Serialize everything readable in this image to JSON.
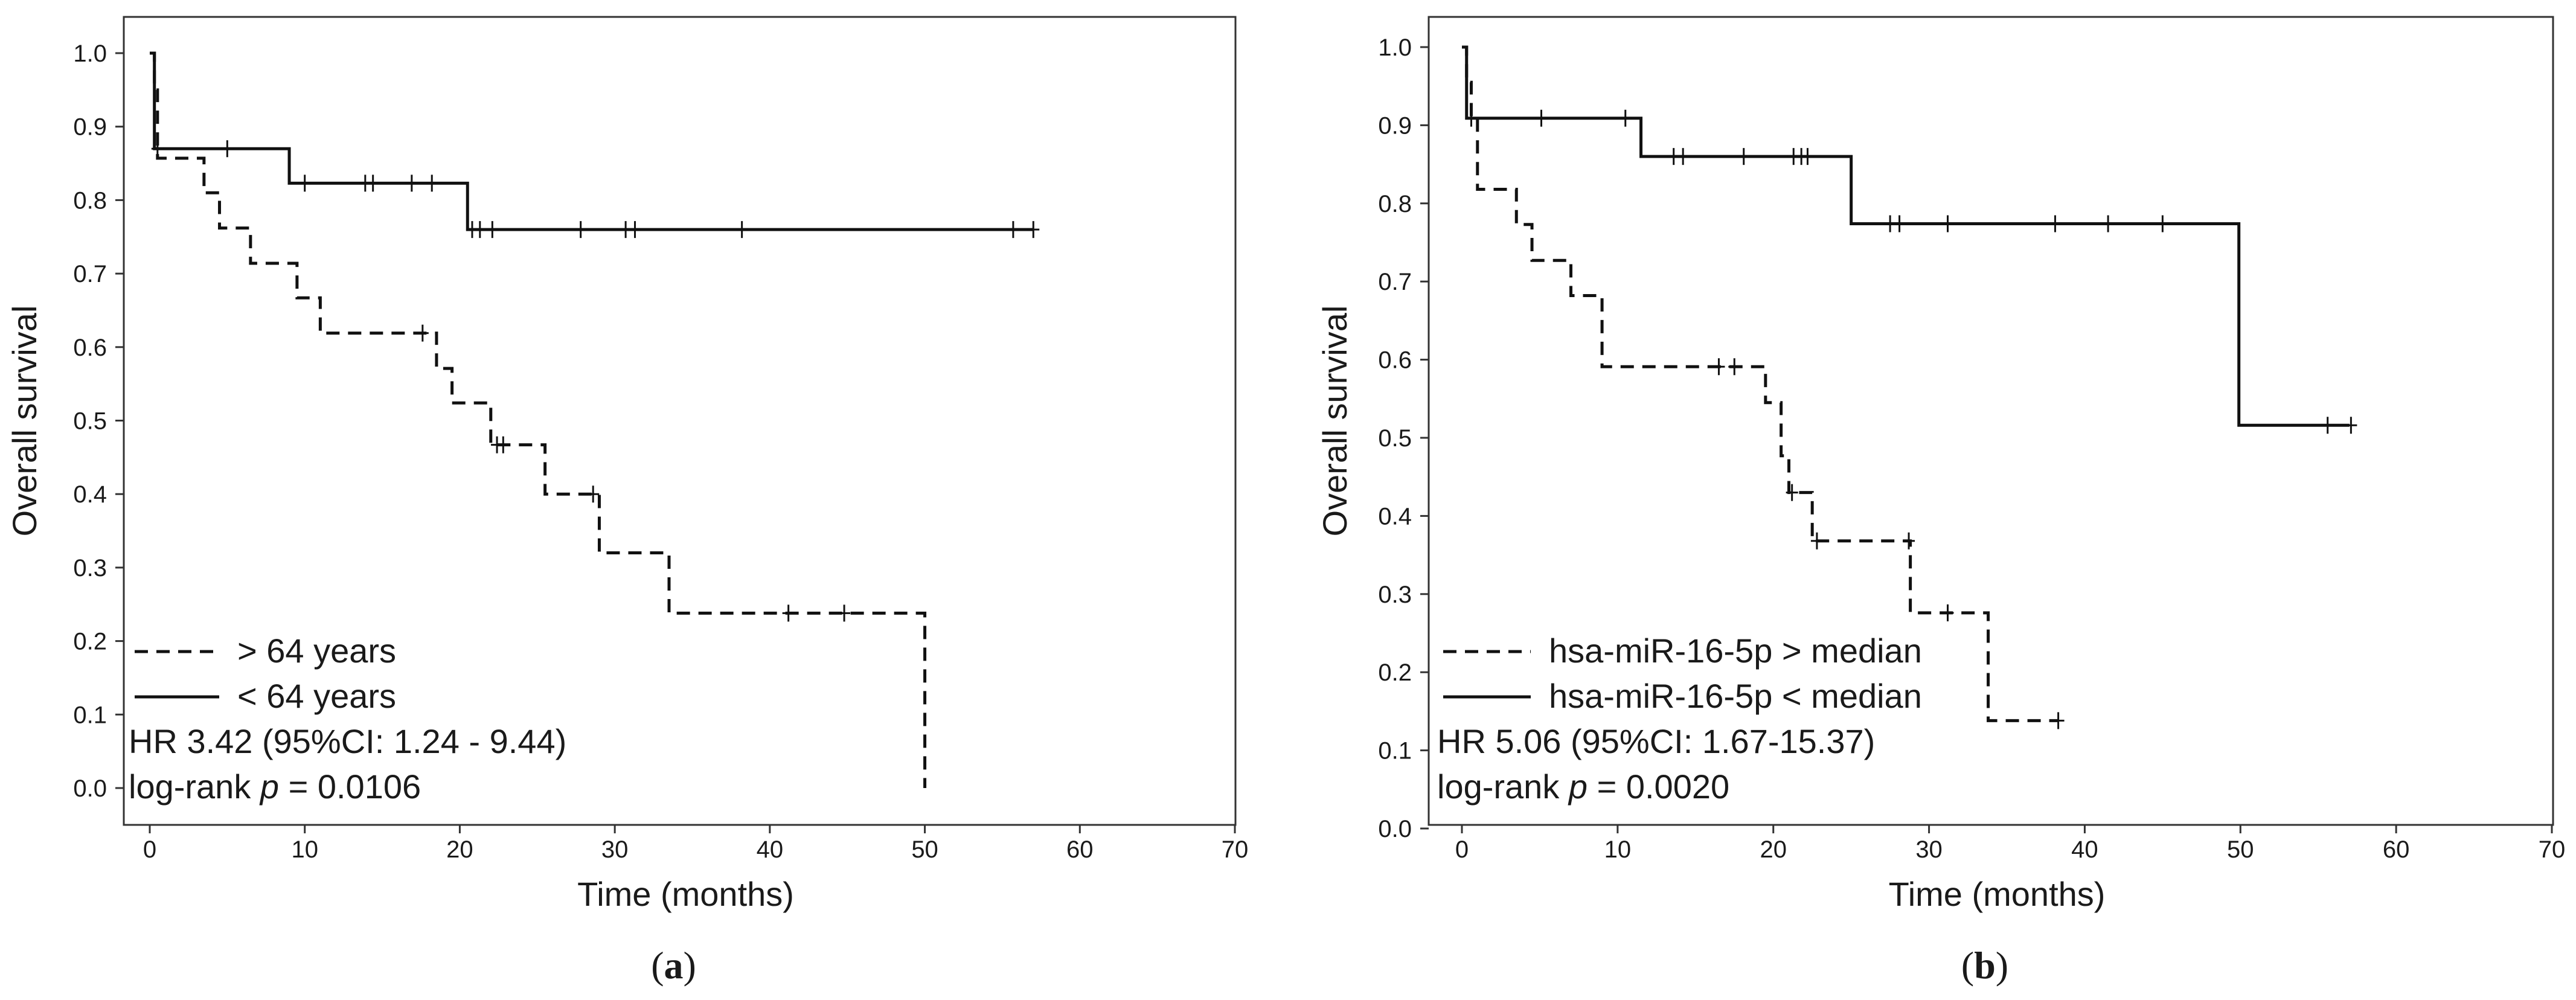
{
  "chart_data": [
    {
      "type": "line",
      "panel_label": "a",
      "xlabel": "Time (months)",
      "ylabel": "Overall survival",
      "xlim": [
        0,
        70
      ],
      "ylim": [
        0,
        1.0
      ],
      "xticks": [
        "0",
        "10",
        "20",
        "30",
        "40",
        "50",
        "60",
        "70"
      ],
      "yticks": [
        "0.0",
        "0.1",
        "0.2",
        "0.3",
        "0.4",
        "0.5",
        "0.6",
        "0.7",
        "0.8",
        "0.9",
        "1.0"
      ],
      "series": [
        {
          "name": "> 64 years",
          "style": "dashed",
          "steps": [
            [
              0,
              1.0
            ],
            [
              0.3,
              0.95
            ],
            [
              0.5,
              0.857
            ],
            [
              3.5,
              0.81
            ],
            [
              4.5,
              0.762
            ],
            [
              6.5,
              0.714
            ],
            [
              9.5,
              0.667
            ],
            [
              11,
              0.619
            ],
            [
              18.5,
              0.571
            ],
            [
              19.5,
              0.524
            ],
            [
              22,
              0.467
            ],
            [
              25.5,
              0.4
            ],
            [
              29,
              0.32
            ],
            [
              33.5,
              0.238
            ],
            [
              50,
              0.0
            ]
          ],
          "censored": [
            [
              17.6,
              0.619
            ],
            [
              22.4,
              0.467
            ],
            [
              22.8,
              0.467
            ],
            [
              28.6,
              0.4
            ],
            [
              41.2,
              0.238
            ],
            [
              44.8,
              0.238
            ]
          ]
        },
        {
          "name": "< 64 years",
          "style": "solid",
          "steps": [
            [
              0,
              1.0
            ],
            [
              0.3,
              0.87
            ],
            [
              9,
              0.823
            ],
            [
              20.5,
              0.76
            ],
            [
              57,
              0.76
            ]
          ],
          "censored": [
            [
              0.5,
              0.87
            ],
            [
              5,
              0.87
            ],
            [
              10,
              0.823
            ],
            [
              13.9,
              0.823
            ],
            [
              14.4,
              0.823
            ],
            [
              16.9,
              0.823
            ],
            [
              18.2,
              0.823
            ],
            [
              20.8,
              0.76
            ],
            [
              21.3,
              0.76
            ],
            [
              22.1,
              0.76
            ],
            [
              27.8,
              0.76
            ],
            [
              30.7,
              0.76
            ],
            [
              31.3,
              0.76
            ],
            [
              38.2,
              0.76
            ],
            [
              55.7,
              0.76
            ],
            [
              57,
              0.76
            ]
          ]
        }
      ],
      "annotations": [
        {
          "text_prefix": "HR 3.42 (95%CI: 1.24 - 9.44)"
        },
        {
          "text_prefix": "log-rank ",
          "italic": "p",
          "text_suffix": " = 0.0106"
        }
      ]
    },
    {
      "type": "line",
      "panel_label": "b",
      "xlabel": "Time (months)",
      "ylabel": "Overall survival",
      "xlim": [
        0,
        70
      ],
      "ylim": [
        0,
        1.0
      ],
      "xticks": [
        "0",
        "10",
        "20",
        "30",
        "40",
        "50",
        "60",
        "70"
      ],
      "yticks": [
        "0.0",
        "0.1",
        "0.2",
        "0.3",
        "0.4",
        "0.5",
        "0.6",
        "0.7",
        "0.8",
        "0.9",
        "1.0"
      ],
      "series": [
        {
          "name": "hsa-miR-16-5p > median",
          "style": "dashed",
          "steps": [
            [
              0,
              1.0
            ],
            [
              0.3,
              0.955
            ],
            [
              0.6,
              0.909
            ],
            [
              1,
              0.818
            ],
            [
              3.5,
              0.773
            ],
            [
              4.5,
              0.727
            ],
            [
              7,
              0.682
            ],
            [
              9,
              0.591
            ],
            [
              19.5,
              0.545
            ],
            [
              20.5,
              0.477
            ],
            [
              21,
              0.43
            ],
            [
              22.5,
              0.368
            ],
            [
              28.8,
              0.276
            ],
            [
              33.8,
              0.138
            ],
            [
              38.3,
              0.138
            ]
          ],
          "censored": [
            [
              16.5,
              0.591
            ],
            [
              17.5,
              0.591
            ],
            [
              21.2,
              0.43
            ],
            [
              22.8,
              0.368
            ],
            [
              28.7,
              0.368
            ],
            [
              31.2,
              0.276
            ],
            [
              38.3,
              0.138
            ]
          ]
        },
        {
          "name": "hsa-miR-16-5p < median",
          "style": "solid",
          "steps": [
            [
              0,
              1.0
            ],
            [
              0.3,
              0.909
            ],
            [
              11.5,
              0.86
            ],
            [
              25,
              0.774
            ],
            [
              49.9,
              0.516
            ],
            [
              57,
              0.516
            ]
          ],
          "censored": [
            [
              0.6,
              0.909
            ],
            [
              5.1,
              0.909
            ],
            [
              10.5,
              0.909
            ],
            [
              13.6,
              0.86
            ],
            [
              14.2,
              0.86
            ],
            [
              18.1,
              0.86
            ],
            [
              21.3,
              0.86
            ],
            [
              21.8,
              0.86
            ],
            [
              22.2,
              0.86
            ],
            [
              27.5,
              0.774
            ],
            [
              28.1,
              0.774
            ],
            [
              31.2,
              0.774
            ],
            [
              38.1,
              0.774
            ],
            [
              41.5,
              0.774
            ],
            [
              45,
              0.774
            ],
            [
              55.6,
              0.516
            ],
            [
              57.1,
              0.516
            ]
          ]
        }
      ],
      "annotations": [
        {
          "text_prefix": "HR 5.06 (95%CI: 1.67-15.37)"
        },
        {
          "text_prefix": "log-rank ",
          "italic": "p",
          "text_suffix": " = 0.0020"
        }
      ]
    }
  ]
}
